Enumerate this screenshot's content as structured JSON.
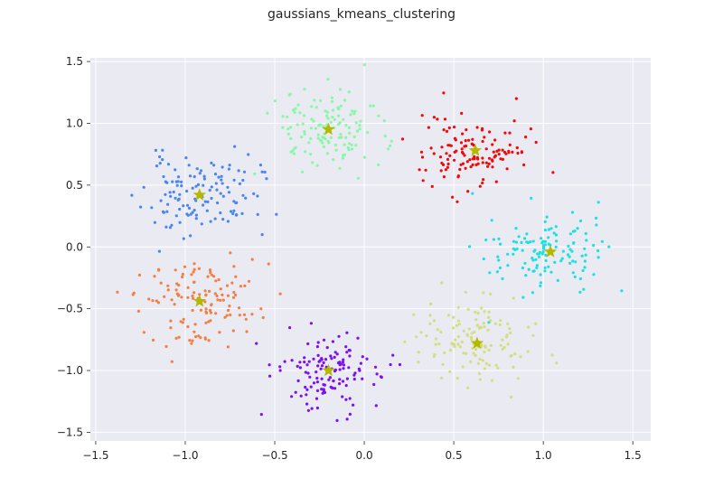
{
  "chart_data": {
    "type": "scatter",
    "title": "gaussians_kmeans_clustering",
    "xlabel": "",
    "ylabel": "",
    "xlim": [
      -1.53,
      1.6
    ],
    "ylim": [
      -1.57,
      1.53
    ],
    "xticks": [
      -1.5,
      -1.0,
      -0.5,
      0.0,
      0.5,
      1.0,
      1.5
    ],
    "xtick_labels": [
      "−1.5",
      "−1.0",
      "−0.5",
      "0.0",
      "0.5",
      "1.0",
      "1.5"
    ],
    "yticks": [
      -1.5,
      -1.0,
      -0.5,
      0.0,
      0.5,
      1.0,
      1.5
    ],
    "ytick_labels": [
      "−1.5",
      "−1.0",
      "−0.5",
      "0.0",
      "0.5",
      "1.0",
      "1.5"
    ],
    "grid": true,
    "legend": "none",
    "background": "#eaeaf2",
    "grid_color": "#ffffff",
    "centroid_color": "#b5b800",
    "centroid_marker": "star",
    "series": [
      {
        "color": "#4a86f0",
        "centroid": [
          -0.92,
          0.42
        ],
        "spread": 0.16,
        "count": 130,
        "seed": 11
      },
      {
        "color": "#88f7a8",
        "centroid": [
          -0.2,
          0.95
        ],
        "spread": 0.16,
        "count": 130,
        "seed": 23
      },
      {
        "color": "#f20a0a",
        "centroid": [
          0.62,
          0.78
        ],
        "spread": 0.15,
        "count": 130,
        "seed": 37
      },
      {
        "color": "#1fe0e0",
        "centroid": [
          1.04,
          -0.04
        ],
        "spread": 0.17,
        "count": 130,
        "seed": 41
      },
      {
        "color": "#f47f45",
        "centroid": [
          -0.92,
          -0.44
        ],
        "spread": 0.17,
        "count": 130,
        "seed": 53
      },
      {
        "color": "#7b10f0",
        "centroid": [
          -0.2,
          -1.0
        ],
        "spread": 0.15,
        "count": 130,
        "seed": 67
      },
      {
        "color": "#d4de80",
        "centroid": [
          0.63,
          -0.78
        ],
        "spread": 0.16,
        "count": 130,
        "seed": 79
      }
    ]
  }
}
